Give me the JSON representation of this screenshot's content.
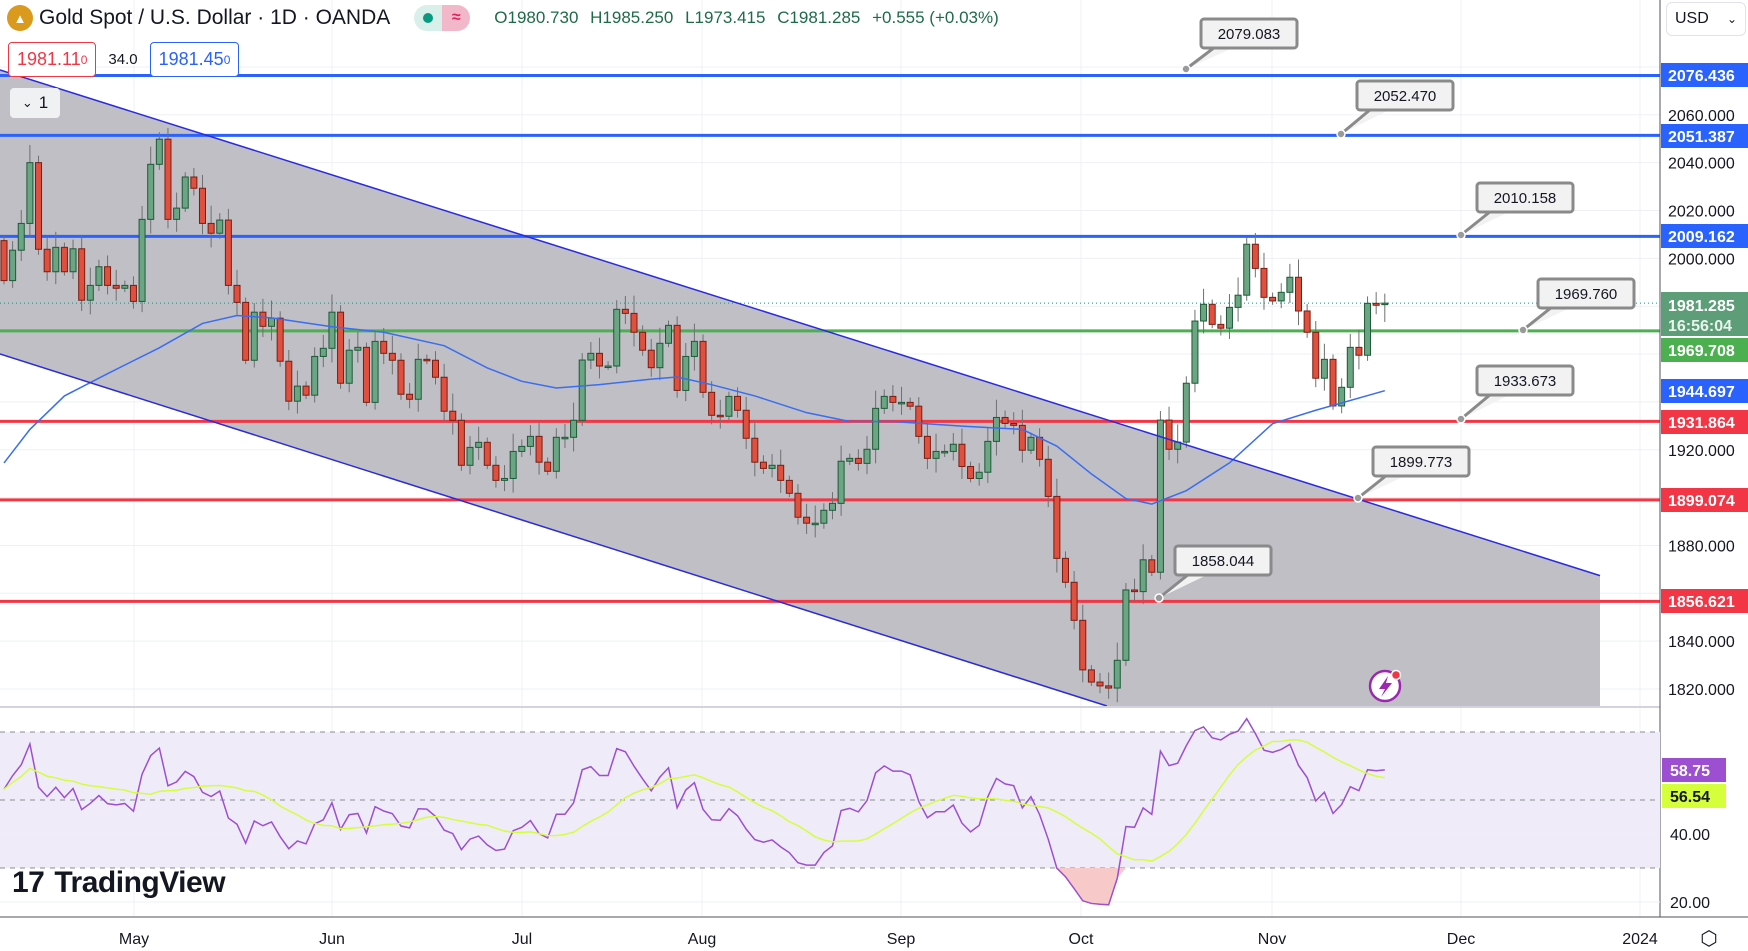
{
  "header": {
    "symbol_title": "Gold Spot / U.S. Dollar · 1D · OANDA",
    "ohlc": {
      "open": "O1980.730",
      "high": "H1985.250",
      "low": "L1973.415",
      "close": "C1981.285",
      "change": "+0.555 (+0.03%)"
    },
    "bid_price": "1981.11",
    "bid_price_sup": "0",
    "spread": "34.0",
    "ask_price": "1981.45",
    "ask_price_sup": "0",
    "collapse_count": "1",
    "currency": "USD"
  },
  "colors": {
    "up": "#6ba583",
    "down": "#e0503f",
    "blue_line": "#2962ff",
    "red_line": "#f23645",
    "green_line": "#4caf50",
    "channel_fill": "#bcbcc2",
    "ma": "#3a6df0",
    "rsi": "#9c4fd1",
    "rsi_ma": "#d4ff3a"
  },
  "price_axis": {
    "labels": [
      "2060.000",
      "2040.000",
      "2020.000",
      "2000.000",
      "1920.000",
      "1880.000",
      "1840.000",
      "1820.000"
    ],
    "badges": [
      {
        "value": "2076.436",
        "type": "blue"
      },
      {
        "value": "2051.387",
        "type": "blue"
      },
      {
        "value": "2009.162",
        "type": "blue"
      },
      {
        "value": "1981.285",
        "sub": "16:56:04",
        "type": "current"
      },
      {
        "value": "1969.708",
        "type": "green"
      },
      {
        "value": "1944.697",
        "type": "blue"
      },
      {
        "value": "1931.864",
        "type": "red"
      },
      {
        "value": "1899.074",
        "type": "red"
      },
      {
        "value": "1856.621",
        "type": "red"
      }
    ]
  },
  "horizontal_levels": [
    {
      "price": 2076.436,
      "type": "blue"
    },
    {
      "price": 2051.387,
      "type": "blue"
    },
    {
      "price": 2009.162,
      "type": "blue"
    },
    {
      "price": 1969.708,
      "type": "green"
    },
    {
      "price": 1931.864,
      "type": "red"
    },
    {
      "price": 1899.074,
      "type": "red"
    },
    {
      "price": 1856.621,
      "type": "red"
    }
  ],
  "callouts": [
    "2079.083",
    "2052.470",
    "2010.158",
    "1969.760",
    "1933.673",
    "1899.773",
    "1858.044"
  ],
  "current_price": 1981.285,
  "candles": {
    "first_open": 2007.4,
    "last": {
      "open": 1980.73,
      "high": 1985.25,
      "low": 1973.415,
      "close": 1981.285
    },
    "closes": [
      1990.7,
      2003.4,
      2014.6,
      2040,
      2003.8,
      1994.4,
      2004.6,
      1994.4,
      2004,
      1982.5,
      1988.7,
      1996.5,
      1988.7,
      1987.5,
      1988.7,
      1982,
      2016.3,
      2039.3,
      2049.8,
      2016.3,
      2021,
      2034,
      2029.3,
      2014.6,
      2010.5,
      2016,
      1988.7,
      1981.6,
      1957.4,
      1977.5,
      1971.6,
      1975,
      1957,
      1940.3,
      1946.6,
      1942.8,
      1959,
      1962.4,
      1977.5,
      1947.8,
      1961.6,
      1962.8,
      1939.8,
      1965.3,
      1960.3,
      1957.4,
      1943.2,
      1941.1,
      1957.8,
      1957.4,
      1950.3,
      1936.1,
      1932.3,
      1913.5,
      1921,
      1923.1,
      1913.5,
      1907.2,
      1908,
      1919.3,
      1921.4,
      1925.6,
      1914.8,
      1911,
      1925.2,
      1925.2,
      1932.3,
      1957.5,
      1960.3,
      1955,
      1955,
      1978.7,
      1977,
      1969.1,
      1961.6,
      1954.3,
      1964.5,
      1972,
      1944.8,
      1959,
      1965.3,
      1944,
      1934.4,
      1934,
      1942.3,
      1936.5,
      1924.8,
      1914.8,
      1912.2,
      1913.5,
      1907.2,
      1901.8,
      1891.8,
      1889.3,
      1889.3,
      1894.7,
      1897.6,
      1915.2,
      1916.4,
      1914.3,
      1920.2,
      1937.3,
      1942.3,
      1939.8,
      1939.8,
      1938.2,
      1925.6,
      1916.4,
      1919.3,
      1919.3,
      1922.3,
      1913,
      1908,
      1910.6,
      1923.5,
      1933.5,
      1931,
      1930.2,
      1919.8,
      1925.2,
      1916,
      1900.5,
      1874.6,
      1864.6,
      1848.7,
      1828,
      1822.9,
      1821.3,
      1820.4,
      1832,
      1861.4,
      1860.7,
      1874,
      1868.8,
      1932.4,
      1920.2,
      1923.2,
      1947.8,
      1973.8,
      1980.8,
      1972.4,
      1970.8,
      1979.5,
      1984.6,
      2005.9,
      1995.8,
      1983.7,
      1982.2,
      1985.8,
      1992.1,
      1978,
      1969.1,
      1949.9,
      1957.8,
      1938.3,
      1946.1,
      1962.8,
      1959.5,
      1981.2,
      1980.4,
      1981.285
    ]
  },
  "moving_average": [
    [
      0,
      1914.5
    ],
    [
      3,
      1928.5
    ],
    [
      7,
      1942.5
    ],
    [
      12,
      1951.8
    ],
    [
      18,
      1962.6
    ],
    [
      23,
      1972.8
    ],
    [
      27,
      1976.1
    ],
    [
      31,
      1975.1
    ],
    [
      38,
      1971.4
    ],
    [
      44,
      1969.1
    ],
    [
      51,
      1963.5
    ],
    [
      56,
      1954.2
    ],
    [
      60,
      1948.6
    ],
    [
      64,
      1945.8
    ],
    [
      69,
      1947.2
    ],
    [
      75,
      1949.5
    ],
    [
      78,
      1950.4
    ],
    [
      82,
      1947.2
    ],
    [
      87,
      1942.5
    ],
    [
      93,
      1935.5
    ],
    [
      98,
      1931.8
    ],
    [
      103,
      1931.8
    ],
    [
      111,
      1929.9
    ],
    [
      118,
      1928.5
    ],
    [
      122,
      1921.5
    ],
    [
      126,
      1909.9
    ],
    [
      130,
      1899.6
    ],
    [
      133,
      1897.3
    ],
    [
      137,
      1902.9
    ],
    [
      142,
      1914.5
    ],
    [
      147,
      1930.9
    ],
    [
      152,
      1936.5
    ],
    [
      160,
      1944.697
    ]
  ],
  "rsi": {
    "axis_labels": [
      "40.00",
      "20.00"
    ],
    "value": "58.75",
    "ma_value": "56.54",
    "upper_band": 70,
    "lower_band": 30
  },
  "time_axis": [
    "May",
    "Jun",
    "Jul",
    "Aug",
    "Sep",
    "Oct",
    "Nov",
    "Dec",
    "2024"
  ],
  "branding": {
    "logo": "TradingView"
  }
}
